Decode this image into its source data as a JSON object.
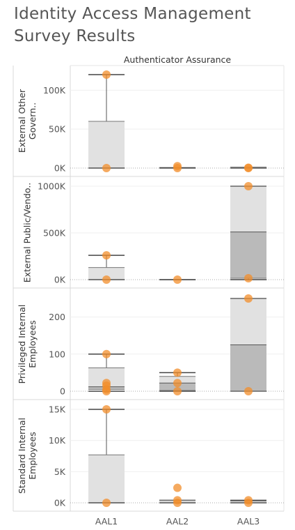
{
  "title": "Identity Access Management Survey Results",
  "chart_data": {
    "type": "box",
    "column_header": "Authenticator Assurance",
    "categories": [
      "AAL1",
      "AAL2",
      "AAL3"
    ],
    "colors": {
      "dot": "#f28e2b",
      "box_light": "#e1e1e1",
      "box_dark": "#bababa",
      "axis_text": "#555555"
    },
    "panels": [
      {
        "name": "External Other Govern..",
        "ylim": [
          0,
          120000
        ],
        "ticks": [
          {
            "v": 0,
            "label": "0K"
          },
          {
            "v": 50000,
            "label": "50K"
          },
          {
            "v": 100000,
            "label": "100K"
          }
        ],
        "boxes": [
          {
            "category": "AAL1",
            "min": 0,
            "q1": 0,
            "median": 0,
            "q3": 60000,
            "max": 120000,
            "points": [
              0,
              120000
            ]
          },
          {
            "category": "AAL2",
            "min": 0,
            "q1": 0,
            "median": 0,
            "q3": 0,
            "max": 500,
            "points": [
              0,
              2500
            ]
          },
          {
            "category": "AAL3",
            "min": 0,
            "q1": 0,
            "median": 0,
            "q3": 500,
            "max": 800,
            "points": [
              0,
              500
            ]
          }
        ]
      },
      {
        "name": "External Public/Vendo..",
        "ylim": [
          0,
          1000000
        ],
        "ticks": [
          {
            "v": 0,
            "label": "0K"
          },
          {
            "v": 500000,
            "label": "500K"
          },
          {
            "v": 1000000,
            "label": "1000K"
          }
        ],
        "boxes": [
          {
            "category": "AAL1",
            "min": 0,
            "q1": 0,
            "median": 0,
            "q3": 130000,
            "max": 260000,
            "points": [
              0,
              260000
            ]
          },
          {
            "category": "AAL2",
            "min": 0,
            "q1": 0,
            "median": 0,
            "q3": 0,
            "max": 0,
            "points": [
              0
            ]
          },
          {
            "category": "AAL3",
            "min": 0,
            "q1": 15000,
            "median": 510000,
            "q3": 1000000,
            "max": 1000000,
            "points": [
              15000,
              1000000
            ]
          }
        ]
      },
      {
        "name": "Privileged Internal Employees",
        "ylim": [
          0,
          250
        ],
        "ticks": [
          {
            "v": 0,
            "label": "0"
          },
          {
            "v": 100,
            "label": "100"
          },
          {
            "v": 200,
            "label": "200"
          }
        ],
        "boxes": [
          {
            "category": "AAL1",
            "min": 0,
            "q1": 5,
            "median": 12,
            "q3": 63,
            "max": 100,
            "points": [
              0,
              5,
              15,
              22,
              100
            ]
          },
          {
            "category": "AAL2",
            "min": 0,
            "q1": 2,
            "median": 22,
            "q3": 40,
            "max": 50,
            "points": [
              0,
              22,
              50
            ]
          },
          {
            "category": "AAL3",
            "min": 0,
            "q1": 0,
            "median": 125,
            "q3": 250,
            "max": 250,
            "points": [
              0,
              250
            ]
          }
        ]
      },
      {
        "name": "Standard Internal Employees",
        "ylim": [
          0,
          15000
        ],
        "ticks": [
          {
            "v": 0,
            "label": "0K"
          },
          {
            "v": 5000,
            "label": "5K"
          },
          {
            "v": 10000,
            "label": "10K"
          },
          {
            "v": 15000,
            "label": "15K"
          }
        ],
        "boxes": [
          {
            "category": "AAL1",
            "min": 0,
            "q1": 0,
            "median": 0,
            "q3": 7700,
            "max": 15000,
            "points": [
              0,
              15000
            ]
          },
          {
            "category": "AAL2",
            "min": 0,
            "q1": 0,
            "median": 0,
            "q3": 400,
            "max": 400,
            "points": [
              0,
              400,
              2400
            ]
          },
          {
            "category": "AAL3",
            "min": 0,
            "q1": 0,
            "median": 0,
            "q3": 300,
            "max": 400,
            "points": [
              0,
              400
            ]
          }
        ]
      }
    ]
  }
}
